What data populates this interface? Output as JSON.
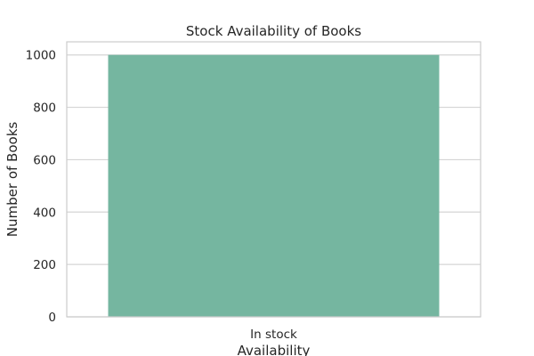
{
  "chart_data": {
    "type": "bar",
    "title": "Stock Availability of Books",
    "xlabel": "Availability",
    "ylabel": "Number of Books",
    "categories": [
      "In stock"
    ],
    "values": [
      1000
    ],
    "ylim": [
      0,
      1050
    ],
    "yticks": [
      0,
      200,
      400,
      600,
      800,
      1000
    ],
    "grid": true,
    "bar_color": "#75b6a0",
    "grid_color": "#d5d5d5",
    "frame_color": "#cccccc"
  }
}
